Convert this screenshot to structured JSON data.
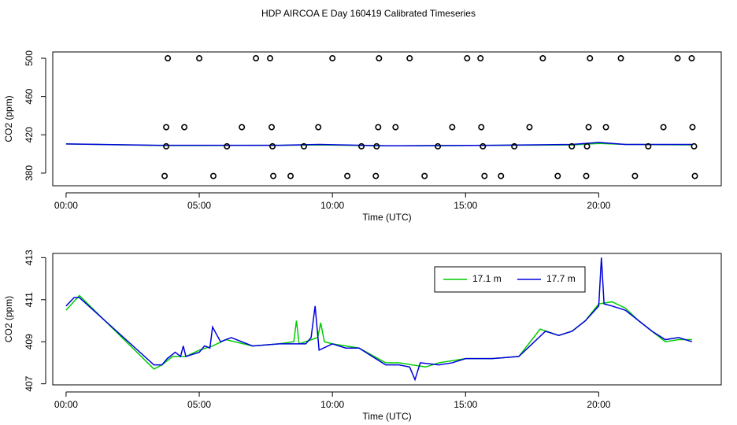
{
  "title": "HDP AIRCOA E  Day 160419  Calibrated Timeseries",
  "chart_data": [
    {
      "type": "scatter",
      "xlabel": "Time (UTC)",
      "ylabel": "CO2 (ppm)",
      "xlim": [
        -0.5,
        24.6
      ],
      "ylim": [
        366.8,
        506.6
      ],
      "xticks": [
        {
          "value": 0,
          "label": "00:00"
        },
        {
          "value": 5,
          "label": "05:00"
        },
        {
          "value": 10,
          "label": "10:00"
        },
        {
          "value": 15,
          "label": "15:00"
        },
        {
          "value": 20,
          "label": "20:00"
        }
      ],
      "yticks": [
        380,
        420,
        460,
        500
      ],
      "color": "#000000",
      "x": [
        3.82,
        5.0,
        7.13,
        7.66,
        10.0,
        11.75,
        12.9,
        15.06,
        15.56,
        17.9,
        19.67,
        20.83,
        22.96,
        23.49,
        3.76,
        4.44,
        6.6,
        7.72,
        9.47,
        11.72,
        12.37,
        14.5,
        15.59,
        17.4,
        19.62,
        20.27,
        22.43,
        23.52,
        3.76,
        6.04,
        7.75,
        8.93,
        11.09,
        11.66,
        13.96,
        15.65,
        16.83,
        18.99,
        19.56,
        21.86,
        23.58,
        3.7,
        5.53,
        7.78,
        8.43,
        10.56,
        11.63,
        13.46,
        15.71,
        16.33,
        18.46,
        19.53,
        21.36,
        23.61
      ],
      "values": [
        500,
        500,
        500,
        500,
        500,
        500,
        500,
        500,
        500,
        500,
        500,
        500,
        500,
        500,
        428,
        428,
        428,
        428,
        428,
        428,
        428,
        428,
        428,
        428,
        428,
        428,
        428,
        428,
        408,
        408,
        408,
        408,
        408,
        408,
        408,
        408,
        408,
        408,
        408,
        408,
        408,
        377,
        377,
        377,
        377,
        377,
        377,
        377,
        377,
        377,
        377,
        377,
        377,
        377
      ],
      "series": [
        {
          "color": "#00cc00",
          "x": [
            0,
            3.5,
            8,
            9.5,
            12,
            16,
            19,
            20,
            21,
            23.5
          ],
          "values": [
            410.5,
            408.8,
            409,
            409.5,
            408.5,
            409,
            409.5,
            411,
            410,
            409.5
          ]
        },
        {
          "color": "#0000dd",
          "x": [
            0,
            3.5,
            8,
            9.5,
            12,
            16,
            19,
            20,
            21,
            23.5
          ],
          "values": [
            410.5,
            409,
            409,
            410,
            408.5,
            409,
            410,
            412,
            410,
            410
          ]
        }
      ]
    },
    {
      "type": "line",
      "xlabel": "Time (UTC)",
      "ylabel": "CO2 (ppm)",
      "xlim": [
        -0.5,
        24.6
      ],
      "ylim": [
        406.95,
        413.2
      ],
      "xticks": [
        {
          "value": 0,
          "label": "00:00"
        },
        {
          "value": 5,
          "label": "05:00"
        },
        {
          "value": 10,
          "label": "10:00"
        },
        {
          "value": 15,
          "label": "15:00"
        },
        {
          "value": 20,
          "label": "20:00"
        }
      ],
      "yticks": [
        407,
        409,
        411,
        413
      ],
      "legend": "top-right",
      "series": [
        {
          "name": "17.1 m",
          "color": "#00cc00",
          "x": [
            0,
            0.5,
            3.3,
            3.6,
            4.0,
            4.5,
            5.0,
            5.5,
            6.0,
            7.0,
            8.0,
            8.55,
            8.65,
            8.75,
            9.45,
            9.56,
            9.7,
            10,
            11,
            12,
            12.5,
            13,
            13.5,
            14,
            15,
            16,
            17,
            17.8,
            18.5,
            19,
            19.5,
            20,
            20.5,
            21,
            21.5,
            22,
            22.5,
            23,
            23.5
          ],
          "values": [
            410.5,
            411.2,
            407.7,
            407.9,
            408.3,
            408.3,
            408.6,
            408.8,
            409.1,
            408.8,
            408.9,
            409.0,
            410.0,
            408.9,
            409.2,
            409.9,
            409.0,
            408.9,
            408.7,
            408.0,
            408.0,
            407.9,
            407.8,
            408.0,
            408.2,
            408.2,
            408.3,
            409.6,
            409.3,
            409.5,
            410.0,
            410.8,
            410.9,
            410.6,
            410.0,
            409.5,
            409.0,
            409.1,
            409.1
          ]
        },
        {
          "name": "17.7 m",
          "color": "#0000dd",
          "x": [
            0,
            0.3,
            0.5,
            3.3,
            3.6,
            3.8,
            4.1,
            4.3,
            4.4,
            4.5,
            5.0,
            5.2,
            5.4,
            5.5,
            5.8,
            6.2,
            7.0,
            8.0,
            9.0,
            9.2,
            9.35,
            9.5,
            10,
            10.5,
            11,
            11.5,
            12,
            12.5,
            12.9,
            13.1,
            13.3,
            14,
            14.5,
            15,
            16,
            17,
            17.5,
            18,
            18.5,
            19,
            19.5,
            20,
            20.1,
            20.2,
            20.5,
            21,
            21.5,
            22,
            22.5,
            23,
            23.5
          ],
          "values": [
            410.7,
            411.1,
            411.1,
            407.9,
            407.9,
            408.2,
            408.5,
            408.3,
            408.8,
            408.3,
            408.5,
            408.8,
            408.7,
            409.7,
            409.0,
            409.2,
            408.8,
            408.9,
            408.9,
            409.2,
            410.7,
            408.6,
            408.9,
            408.7,
            408.7,
            408.3,
            407.9,
            407.9,
            407.8,
            407.2,
            408.0,
            407.9,
            408.0,
            408.2,
            408.2,
            408.3,
            408.9,
            409.5,
            409.3,
            409.5,
            410.0,
            410.7,
            413.0,
            410.8,
            410.7,
            410.5,
            410.0,
            409.5,
            409.1,
            409.2,
            409.0
          ]
        }
      ]
    }
  ]
}
